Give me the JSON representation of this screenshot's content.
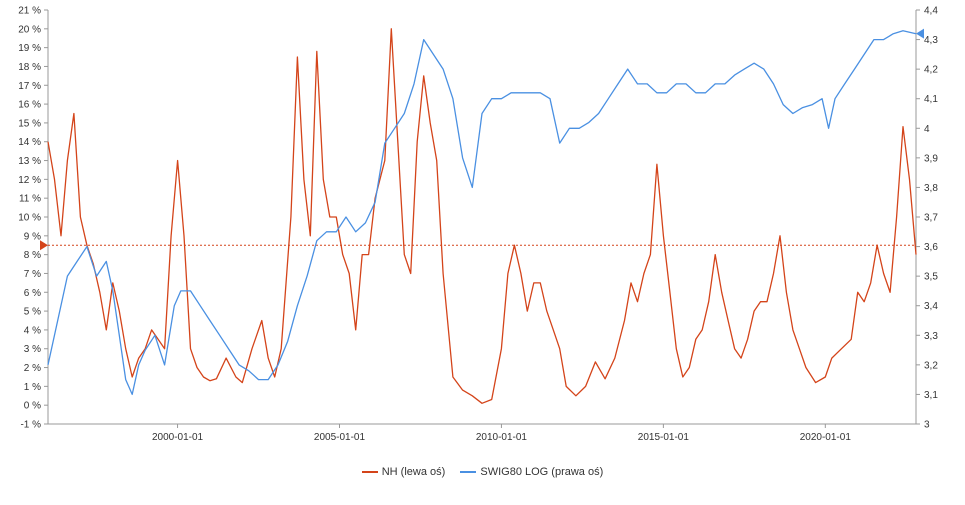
{
  "chart_data": {
    "type": "line",
    "x_ticks": [
      "2000-01-01",
      "2005-01-01",
      "2010-01-01",
      "2015-01-01",
      "2020-01-01"
    ],
    "left_axis": {
      "ticks": [
        "-1 %",
        "0 %",
        "1 %",
        "2 %",
        "3 %",
        "4 %",
        "5 %",
        "6 %",
        "7 %",
        "8 %",
        "9 %",
        "10 %",
        "11 %",
        "12 %",
        "13 %",
        "14 %",
        "15 %",
        "16 %",
        "17 %",
        "18 %",
        "19 %",
        "20 %",
        "21 %"
      ],
      "range": [
        -1,
        21
      ]
    },
    "right_axis": {
      "ticks": [
        "3",
        "3,1",
        "3,2",
        "3,3",
        "3,4",
        "3,5",
        "3,6",
        "3,7",
        "3,8",
        "3,9",
        "4",
        "4,1",
        "4,2",
        "4,3",
        "4,4"
      ],
      "range": [
        3.0,
        4.4
      ]
    },
    "reference_line": {
      "series": "NH",
      "value": 8.5
    },
    "series": [
      {
        "name": "NH (lewa oś)",
        "axis": "left",
        "color": "#d4441a",
        "points": [
          [
            1996.0,
            14
          ],
          [
            1996.2,
            12
          ],
          [
            1996.4,
            9
          ],
          [
            1996.6,
            13
          ],
          [
            1996.8,
            15.5
          ],
          [
            1997.0,
            10
          ],
          [
            1997.2,
            8.5
          ],
          [
            1997.4,
            7.5
          ],
          [
            1997.6,
            6
          ],
          [
            1997.8,
            4
          ],
          [
            1998.0,
            6.5
          ],
          [
            1998.2,
            5
          ],
          [
            1998.4,
            3
          ],
          [
            1998.6,
            1.5
          ],
          [
            1998.8,
            2.5
          ],
          [
            1999.0,
            3
          ],
          [
            1999.2,
            4
          ],
          [
            1999.4,
            3.5
          ],
          [
            1999.6,
            3
          ],
          [
            1999.8,
            9
          ],
          [
            2000.0,
            13
          ],
          [
            2000.2,
            9
          ],
          [
            2000.4,
            3
          ],
          [
            2000.6,
            2
          ],
          [
            2000.8,
            1.5
          ],
          [
            2001.0,
            1.3
          ],
          [
            2001.2,
            1.4
          ],
          [
            2001.5,
            2.5
          ],
          [
            2001.8,
            1.5
          ],
          [
            2002.0,
            1.2
          ],
          [
            2002.3,
            3
          ],
          [
            2002.6,
            4.5
          ],
          [
            2002.8,
            2.5
          ],
          [
            2003.0,
            1.5
          ],
          [
            2003.2,
            3
          ],
          [
            2003.5,
            10
          ],
          [
            2003.7,
            18.5
          ],
          [
            2003.9,
            12
          ],
          [
            2004.1,
            9
          ],
          [
            2004.3,
            18.8
          ],
          [
            2004.5,
            12
          ],
          [
            2004.7,
            10
          ],
          [
            2004.9,
            10
          ],
          [
            2005.1,
            8
          ],
          [
            2005.3,
            7
          ],
          [
            2005.5,
            4
          ],
          [
            2005.7,
            8
          ],
          [
            2005.9,
            8
          ],
          [
            2006.1,
            11
          ],
          [
            2006.4,
            13
          ],
          [
            2006.6,
            20
          ],
          [
            2006.8,
            14
          ],
          [
            2007.0,
            8
          ],
          [
            2007.2,
            7
          ],
          [
            2007.4,
            14
          ],
          [
            2007.6,
            17.5
          ],
          [
            2007.8,
            15
          ],
          [
            2008.0,
            13
          ],
          [
            2008.2,
            7
          ],
          [
            2008.5,
            1.5
          ],
          [
            2008.8,
            0.8
          ],
          [
            2009.1,
            0.5
          ],
          [
            2009.4,
            0.1
          ],
          [
            2009.7,
            0.3
          ],
          [
            2010.0,
            3
          ],
          [
            2010.2,
            7
          ],
          [
            2010.4,
            8.5
          ],
          [
            2010.6,
            7
          ],
          [
            2010.8,
            5
          ],
          [
            2011.0,
            6.5
          ],
          [
            2011.2,
            6.5
          ],
          [
            2011.4,
            5
          ],
          [
            2011.6,
            4
          ],
          [
            2011.8,
            3
          ],
          [
            2012.0,
            1
          ],
          [
            2012.3,
            0.5
          ],
          [
            2012.6,
            1
          ],
          [
            2012.9,
            2.3
          ],
          [
            2013.2,
            1.4
          ],
          [
            2013.5,
            2.5
          ],
          [
            2013.8,
            4.5
          ],
          [
            2014.0,
            6.5
          ],
          [
            2014.2,
            5.5
          ],
          [
            2014.4,
            7
          ],
          [
            2014.6,
            8
          ],
          [
            2014.8,
            12.8
          ],
          [
            2015.0,
            9
          ],
          [
            2015.2,
            6
          ],
          [
            2015.4,
            3
          ],
          [
            2015.6,
            1.5
          ],
          [
            2015.8,
            2
          ],
          [
            2016.0,
            3.5
          ],
          [
            2016.2,
            4
          ],
          [
            2016.4,
            5.5
          ],
          [
            2016.6,
            8
          ],
          [
            2016.8,
            6
          ],
          [
            2017.0,
            4.5
          ],
          [
            2017.2,
            3
          ],
          [
            2017.4,
            2.5
          ],
          [
            2017.6,
            3.5
          ],
          [
            2017.8,
            5
          ],
          [
            2018.0,
            5.5
          ],
          [
            2018.2,
            5.5
          ],
          [
            2018.4,
            7
          ],
          [
            2018.6,
            9
          ],
          [
            2018.8,
            6
          ],
          [
            2019.0,
            4
          ],
          [
            2019.2,
            3
          ],
          [
            2019.4,
            2
          ],
          [
            2019.7,
            1.2
          ],
          [
            2020.0,
            1.5
          ],
          [
            2020.2,
            2.5
          ],
          [
            2020.5,
            3
          ],
          [
            2020.8,
            3.5
          ],
          [
            2021.0,
            6
          ],
          [
            2021.2,
            5.5
          ],
          [
            2021.4,
            6.5
          ],
          [
            2021.6,
            8.5
          ],
          [
            2021.8,
            7
          ],
          [
            2022.0,
            6
          ],
          [
            2022.2,
            10
          ],
          [
            2022.4,
            14.8
          ],
          [
            2022.6,
            12
          ],
          [
            2022.8,
            8
          ]
        ]
      },
      {
        "name": "SWIG80 LOG (prawa oś)",
        "axis": "right",
        "color": "#4a90e2",
        "points": [
          [
            1996.0,
            3.2
          ],
          [
            1996.3,
            3.35
          ],
          [
            1996.6,
            3.5
          ],
          [
            1996.9,
            3.55
          ],
          [
            1997.2,
            3.6
          ],
          [
            1997.5,
            3.5
          ],
          [
            1997.8,
            3.55
          ],
          [
            1998.0,
            3.45
          ],
          [
            1998.2,
            3.3
          ],
          [
            1998.4,
            3.15
          ],
          [
            1998.6,
            3.1
          ],
          [
            1998.8,
            3.2
          ],
          [
            1999.0,
            3.25
          ],
          [
            1999.3,
            3.3
          ],
          [
            1999.6,
            3.2
          ],
          [
            1999.9,
            3.4
          ],
          [
            2000.1,
            3.45
          ],
          [
            2000.4,
            3.45
          ],
          [
            2000.7,
            3.4
          ],
          [
            2001.0,
            3.35
          ],
          [
            2001.3,
            3.3
          ],
          [
            2001.6,
            3.25
          ],
          [
            2001.9,
            3.2
          ],
          [
            2002.2,
            3.18
          ],
          [
            2002.5,
            3.15
          ],
          [
            2002.8,
            3.15
          ],
          [
            2003.1,
            3.2
          ],
          [
            2003.4,
            3.28
          ],
          [
            2003.7,
            3.4
          ],
          [
            2004.0,
            3.5
          ],
          [
            2004.3,
            3.62
          ],
          [
            2004.6,
            3.65
          ],
          [
            2004.9,
            3.65
          ],
          [
            2005.2,
            3.7
          ],
          [
            2005.5,
            3.65
          ],
          [
            2005.8,
            3.68
          ],
          [
            2006.1,
            3.75
          ],
          [
            2006.4,
            3.95
          ],
          [
            2006.7,
            4.0
          ],
          [
            2007.0,
            4.05
          ],
          [
            2007.3,
            4.15
          ],
          [
            2007.6,
            4.3
          ],
          [
            2007.9,
            4.25
          ],
          [
            2008.2,
            4.2
          ],
          [
            2008.5,
            4.1
          ],
          [
            2008.8,
            3.9
          ],
          [
            2009.1,
            3.8
          ],
          [
            2009.4,
            4.05
          ],
          [
            2009.7,
            4.1
          ],
          [
            2010.0,
            4.1
          ],
          [
            2010.3,
            4.12
          ],
          [
            2010.6,
            4.12
          ],
          [
            2010.9,
            4.12
          ],
          [
            2011.2,
            4.12
          ],
          [
            2011.5,
            4.1
          ],
          [
            2011.8,
            3.95
          ],
          [
            2012.1,
            4.0
          ],
          [
            2012.4,
            4.0
          ],
          [
            2012.7,
            4.02
          ],
          [
            2013.0,
            4.05
          ],
          [
            2013.3,
            4.1
          ],
          [
            2013.6,
            4.15
          ],
          [
            2013.9,
            4.2
          ],
          [
            2014.2,
            4.15
          ],
          [
            2014.5,
            4.15
          ],
          [
            2014.8,
            4.12
          ],
          [
            2015.1,
            4.12
          ],
          [
            2015.4,
            4.15
          ],
          [
            2015.7,
            4.15
          ],
          [
            2016.0,
            4.12
          ],
          [
            2016.3,
            4.12
          ],
          [
            2016.6,
            4.15
          ],
          [
            2016.9,
            4.15
          ],
          [
            2017.2,
            4.18
          ],
          [
            2017.5,
            4.2
          ],
          [
            2017.8,
            4.22
          ],
          [
            2018.1,
            4.2
          ],
          [
            2018.4,
            4.15
          ],
          [
            2018.7,
            4.08
          ],
          [
            2019.0,
            4.05
          ],
          [
            2019.3,
            4.07
          ],
          [
            2019.6,
            4.08
          ],
          [
            2019.9,
            4.1
          ],
          [
            2020.1,
            4.0
          ],
          [
            2020.3,
            4.1
          ],
          [
            2020.6,
            4.15
          ],
          [
            2020.9,
            4.2
          ],
          [
            2021.2,
            4.25
          ],
          [
            2021.5,
            4.3
          ],
          [
            2021.8,
            4.3
          ],
          [
            2022.1,
            4.32
          ],
          [
            2022.4,
            4.33
          ],
          [
            2022.8,
            4.32
          ]
        ]
      }
    ],
    "x_range": [
      1996.0,
      2022.8
    ]
  }
}
